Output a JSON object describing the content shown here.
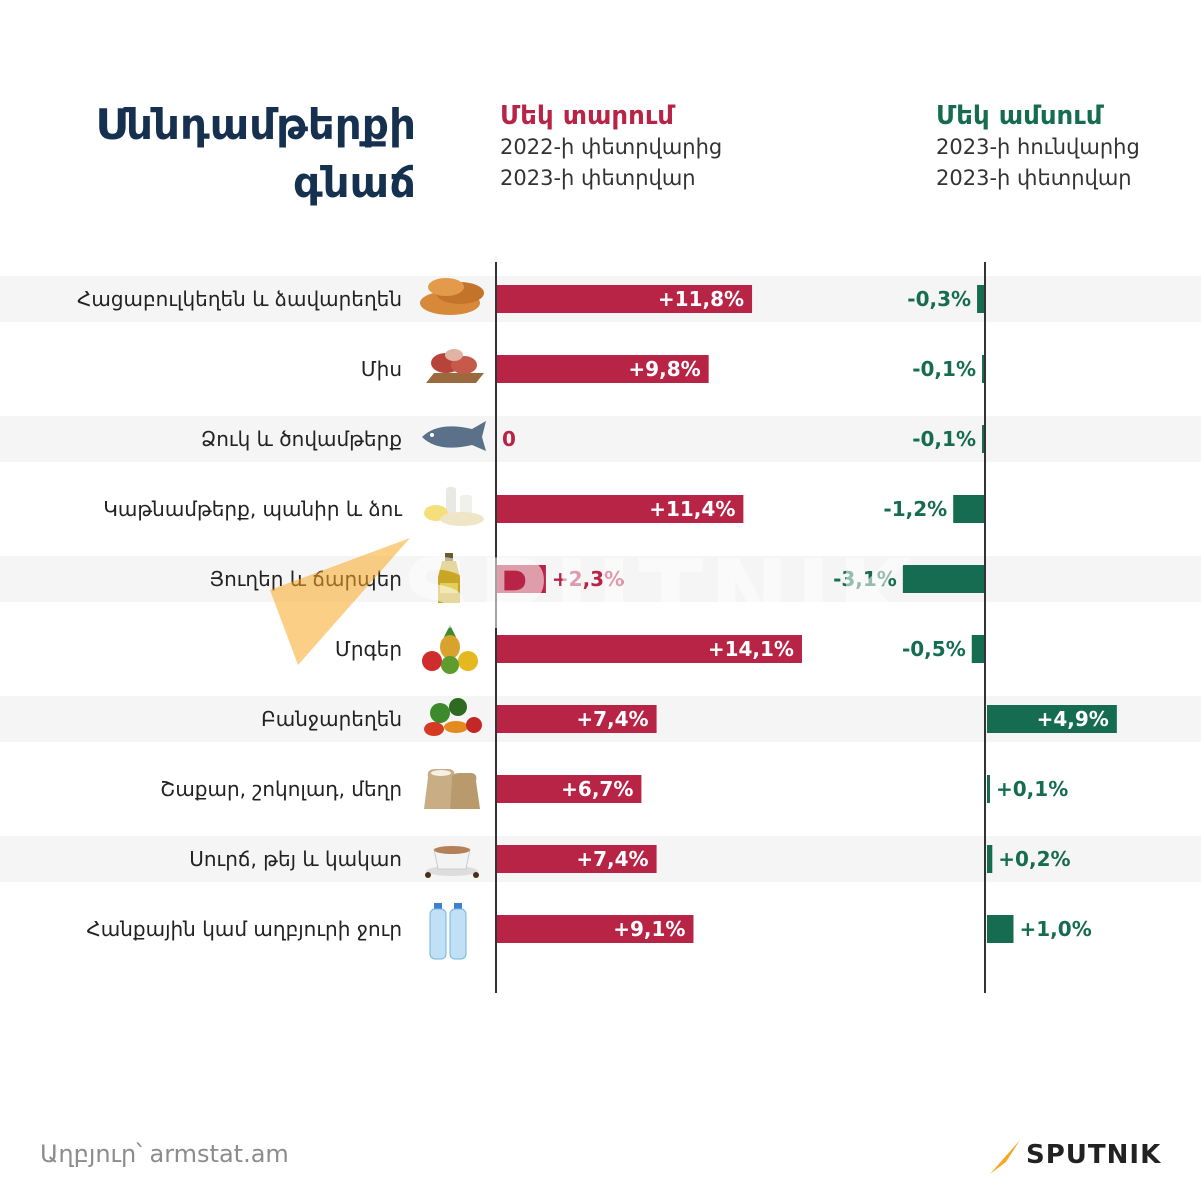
{
  "title": [
    "Սննդամթերքի",
    "գնաճ"
  ],
  "year_header": {
    "label": "Մեկ տարում",
    "sub1": "2022-ի փետրվարից",
    "sub2": "2023-ի փետրվար"
  },
  "month_header": {
    "label": "Մեկ ամսում",
    "sub1": "2023-ի հունվարից",
    "sub2": "2023-ի փետրվար"
  },
  "source": "Աղբյուր՝ armstat.am",
  "brand": "SPUTNIK",
  "watermark": "SPUTNIK",
  "colors": {
    "year": "#b82446",
    "month": "#156c50",
    "title": "#16304f",
    "stripe": "#f5f5f5",
    "accent": "#f7a823"
  },
  "chart_data": {
    "type": "bar",
    "orientation": "horizontal",
    "categories": [
      "Հացաբուլկեղեն և ձավարեղեն",
      "Միս",
      "Ձուկ և ծովամթերք",
      "Կաթնամթերք, պանիր և ձու",
      "Յուղեր և ճարպեր",
      "Մրգեր",
      "Բանջարեղեն",
      "Շաքար, շոկոլադ, մեղր",
      "Սուրճ, թեյ և կակաո",
      "Հանքային կամ աղբյուրի ջուր"
    ],
    "icons": [
      "bread-icon",
      "meat-icon",
      "fish-icon",
      "dairy-icon",
      "oil-icon",
      "fruit-icon",
      "vegetable-icon",
      "sugar-sack-icon",
      "coffee-cup-icon",
      "water-bottle-icon"
    ],
    "series": [
      {
        "name": "Մեկ տարում",
        "values": [
          11.8,
          9.8,
          0,
          11.4,
          2.3,
          14.1,
          7.4,
          6.7,
          7.4,
          9.1
        ],
        "labels": [
          "+11,8%",
          "+9,8%",
          "0",
          "+11,4%",
          "+2,3%",
          "+14,1%",
          "+7,4%",
          "+6,7%",
          "+7,4%",
          "+9,1%"
        ]
      },
      {
        "name": "Մեկ ամսում",
        "values": [
          -0.3,
          -0.1,
          -0.1,
          -1.2,
          -3.1,
          -0.5,
          4.9,
          0.1,
          0.2,
          1.0
        ],
        "labels": [
          "-0,3%",
          "-0,1%",
          "-0,1%",
          "-1,2%",
          "-3,1%",
          "-0,5%",
          "+4,9%",
          "+0,1%",
          "+0,2%",
          "+1,0%"
        ]
      }
    ]
  }
}
